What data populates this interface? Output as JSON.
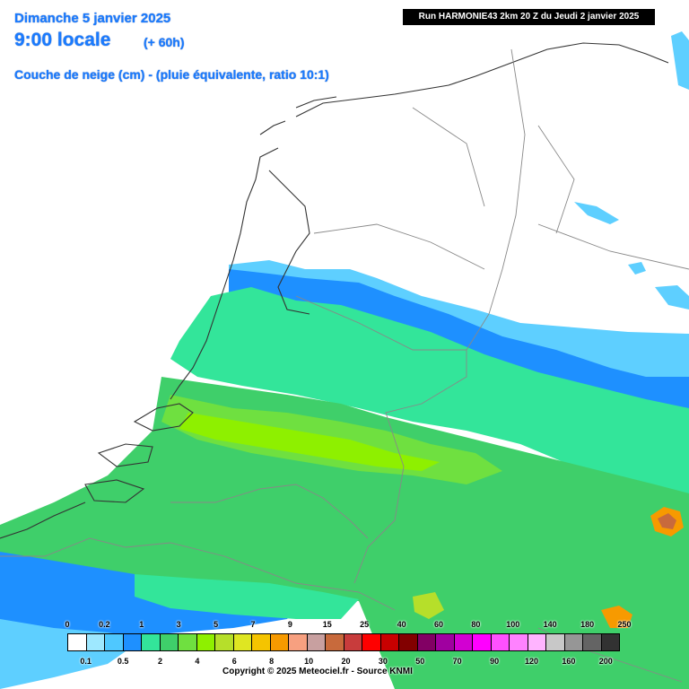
{
  "header": {
    "date": "Dimanche 5 janvier 2025",
    "local_time": "9:00 locale",
    "lead_time": "(+ 60h)",
    "variable": "Couche de neige (cm) - (pluie équivalente, ratio 10:1)",
    "run_info": "Run HARMONIE43 2km 20 Z du Jeudi 2 janvier 2025"
  },
  "legend": {
    "unit": "cm",
    "upper_labels": [
      "0",
      "0.2",
      "1",
      "3",
      "5",
      "7",
      "9",
      "15",
      "25",
      "40",
      "60",
      "80",
      "100",
      "140",
      "180",
      "250"
    ],
    "lower_labels": [
      "0.1",
      "0.5",
      "2",
      "4",
      "6",
      "8",
      "10",
      "20",
      "30",
      "50",
      "70",
      "90",
      "120",
      "160",
      "200"
    ],
    "colors": [
      "#ffffff",
      "#9ee8ff",
      "#4fc8ff",
      "#1e90ff",
      "#33e59a",
      "#3fcf6a",
      "#6fe040",
      "#8ef000",
      "#b6df2a",
      "#dfe622",
      "#f5c400",
      "#f79a00",
      "#f7a080",
      "#c8a0a0",
      "#c86a3c",
      "#c83c3c",
      "#ff0000",
      "#c80000",
      "#820000",
      "#820064",
      "#a000a0",
      "#d200d2",
      "#ff00ff",
      "#ff50ff",
      "#ff82ff",
      "#ffb4ff",
      "#c8c8c8",
      "#969696",
      "#646464",
      "#323232"
    ]
  },
  "map": {
    "land_fill": "#ffffff",
    "border_color": "#888888",
    "coast_color": "#333333",
    "snow_colors": {
      "light": "#9ee8ff",
      "mid": "#4fc8ff",
      "blue": "#1e90ff",
      "teal": "#33e59a",
      "green": "#3fcf6a",
      "lime": "#6fe040",
      "bright": "#8ef000",
      "hot": "#f79a00",
      "peak": "#c86a3c"
    }
  },
  "footer": {
    "copyright": "Copyright © 2025 Meteociel.fr - Source KNMI"
  }
}
